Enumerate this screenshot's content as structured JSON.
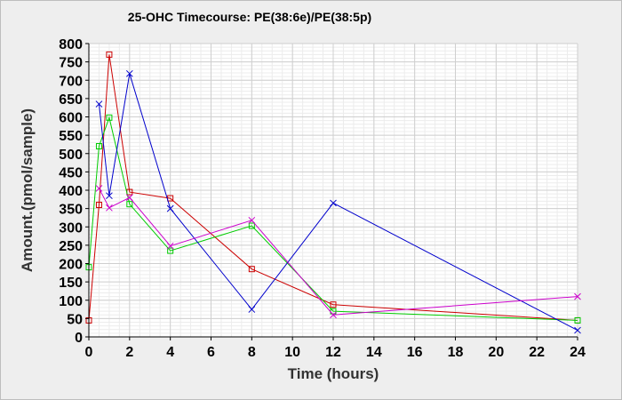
{
  "chart_data": {
    "type": "line",
    "title": "25-OHC Timecourse: PE(38:6e)/PE(38:5p)",
    "xlabel": "Time (hours)",
    "ylabel": "Amount.(pmol/sample)",
    "xlim": [
      0,
      24
    ],
    "ylim": [
      0,
      800
    ],
    "xticks": [
      0,
      2,
      4,
      6,
      8,
      10,
      12,
      14,
      16,
      18,
      20,
      22,
      24
    ],
    "yticks": [
      0,
      50,
      100,
      150,
      200,
      250,
      300,
      350,
      400,
      450,
      500,
      550,
      600,
      650,
      700,
      750,
      800
    ],
    "grid": true,
    "legend": "none",
    "series": [
      {
        "color": "#cc0000",
        "marker": "square",
        "x": [
          0,
          0.5,
          1,
          2,
          4,
          8,
          12,
          24
        ],
        "y": [
          45,
          360,
          770,
          395,
          378,
          185,
          88,
          45
        ]
      },
      {
        "color": "#00cc00",
        "marker": "square",
        "x": [
          0,
          0.5,
          1,
          2,
          4,
          8,
          12,
          24
        ],
        "y": [
          190,
          520,
          598,
          362,
          235,
          303,
          70,
          45
        ]
      },
      {
        "color": "#0000cc",
        "marker": "x",
        "x": [
          0.5,
          1,
          2,
          4,
          8,
          12,
          24
        ],
        "y": [
          635,
          385,
          718,
          350,
          75,
          365,
          18
        ]
      },
      {
        "color": "#cc00cc",
        "marker": "x",
        "x": [
          0.5,
          1,
          2,
          4,
          8,
          12,
          24
        ],
        "y": [
          405,
          352,
          380,
          248,
          318,
          60,
          110
        ]
      }
    ]
  }
}
